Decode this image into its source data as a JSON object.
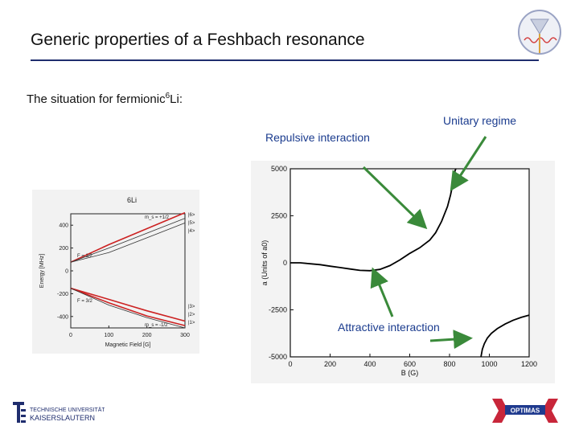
{
  "slide": {
    "title": "Generic properties of a Feshbach resonance",
    "subtitle_text": "The situation for fermionic",
    "subtitle_mass": "6",
    "subtitle_element": "Li:",
    "label_unitary": "Unitary regime",
    "label_repulsive": "Repulsive interaction",
    "label_attractive": "Attractive interaction",
    "colors": {
      "title_rule": "#1f2d6e",
      "label_text": "#1a3b8e",
      "arrow": "#3a8a3a",
      "curve_red": "#cc2222"
    }
  },
  "logos": {
    "tu_line1": "TECHNISCHE UNIVERSITÄT",
    "tu_line2": "KAISERSLAUTERN",
    "optimas_text": "OPTIMAS"
  },
  "chart_data": [
    {
      "type": "line",
      "title": "6Li",
      "xlabel": "Magnetic Field [G]",
      "ylabel": "Energy [MHz]",
      "xlim": [
        0,
        300
      ],
      "ylim": [
        -500,
        500
      ],
      "x_ticks": [
        0,
        100,
        200,
        300
      ],
      "y_ticks": [
        400,
        200,
        0,
        -200,
        -400
      ],
      "annotations": [
        "F = 1/2",
        "F = 3/2",
        "m_s = +1/2",
        "m_s = -1/2",
        "|6>",
        "|5>",
        "|4>",
        "|3>",
        "|2>",
        "|1>"
      ],
      "series": [
        {
          "values_x": [
            0,
            100,
            200,
            300
          ],
          "values_y": [
            76,
            230,
            370,
            510
          ]
        },
        {
          "values_x": [
            0,
            100,
            200,
            300
          ],
          "values_y": [
            76,
            200,
            330,
            460
          ]
        },
        {
          "values_x": [
            0,
            100,
            200,
            300
          ],
          "values_y": [
            76,
            160,
            290,
            420
          ]
        },
        {
          "values_x": [
            0,
            100,
            200,
            300
          ],
          "values_y": [
            -152,
            -250,
            -350,
            -440
          ]
        },
        {
          "values_x": [
            0,
            100,
            200,
            300
          ],
          "values_y": [
            -152,
            -280,
            -395,
            -480
          ]
        },
        {
          "values_x": [
            0,
            100,
            200,
            300
          ],
          "values_y": [
            -152,
            -300,
            -410,
            -500
          ]
        }
      ]
    },
    {
      "type": "line",
      "xlabel": "B (G)",
      "ylabel": "a (Units of a0)",
      "xlim": [
        0,
        1200
      ],
      "ylim": [
        -5000,
        5000
      ],
      "x_ticks": [
        0,
        200,
        400,
        600,
        800,
        1000,
        1200
      ],
      "y_ticks": [
        5000,
        2500,
        0,
        -2500,
        -5000
      ],
      "series": [
        {
          "name": "",
          "x": [
            0,
            50,
            100,
            150,
            200,
            250,
            300,
            350,
            400,
            450,
            500,
            550,
            600,
            650,
            700,
            730,
            760,
            790,
            805,
            815,
            822,
            828,
            832
          ],
          "y": [
            0,
            0,
            -50,
            -100,
            -180,
            -250,
            -330,
            -400,
            -420,
            -350,
            -150,
            150,
            500,
            800,
            1200,
            1600,
            2200,
            3000,
            3600,
            4100,
            4500,
            4900,
            5000
          ]
        },
        {
          "name": "",
          "x": [
            958,
            965,
            975,
            990,
            1010,
            1040,
            1080,
            1120,
            1160,
            1200
          ],
          "y": [
            -5000,
            -4600,
            -4300,
            -4000,
            -3750,
            -3500,
            -3250,
            -3050,
            -2900,
            -2780
          ]
        }
      ]
    }
  ]
}
